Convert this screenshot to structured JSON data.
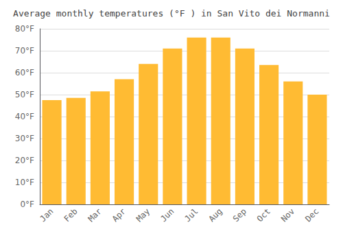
{
  "chart_data": {
    "type": "bar",
    "title": "Average monthly temperatures (°F ) in San Vito dei Normanni",
    "categories": [
      "Jan",
      "Feb",
      "Mar",
      "Apr",
      "May",
      "Jun",
      "Jul",
      "Aug",
      "Sep",
      "Oct",
      "Nov",
      "Dec"
    ],
    "values": [
      47.5,
      48.5,
      51.5,
      57.0,
      64.0,
      71.0,
      76.0,
      76.0,
      71.0,
      63.5,
      56.0,
      50.0
    ],
    "color": "#FFBB33",
    "ylim": [
      0,
      80
    ],
    "yticks": [
      {
        "value": 0,
        "label": "0°F"
      },
      {
        "value": 10,
        "label": "10°F"
      },
      {
        "value": 20,
        "label": "20°F"
      },
      {
        "value": 30,
        "label": "30°F"
      },
      {
        "value": 40,
        "label": "40°F"
      },
      {
        "value": 50,
        "label": "50°F"
      },
      {
        "value": 60,
        "label": "60°F"
      },
      {
        "value": 70,
        "label": "70°F"
      },
      {
        "value": 80,
        "label": "80°F"
      }
    ],
    "grid": true
  }
}
